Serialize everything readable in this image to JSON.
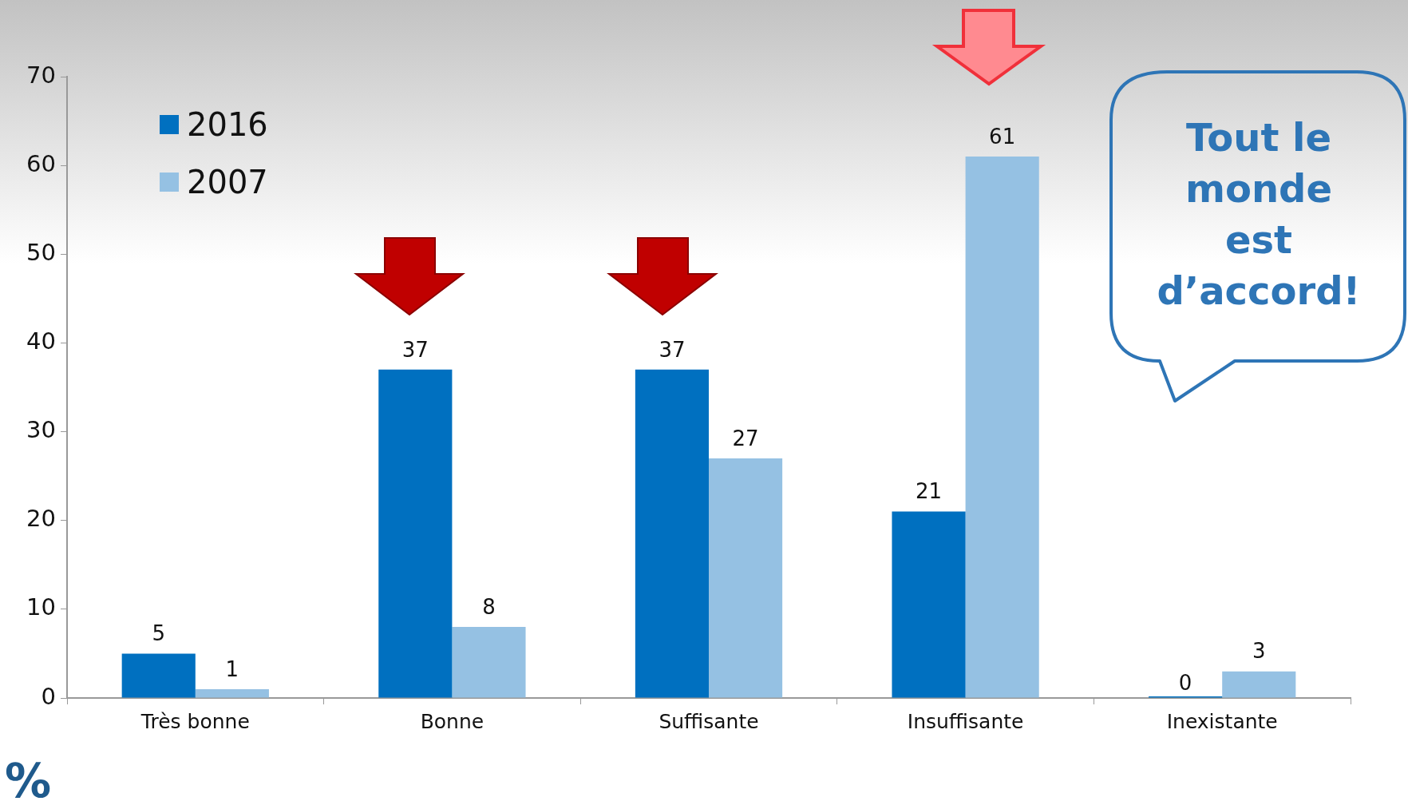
{
  "chart_data": {
    "type": "bar",
    "categories": [
      "Très bonne",
      "Bonne",
      "Suffisante",
      "Insuffisante",
      "Inexistante"
    ],
    "series": [
      {
        "name": "2016",
        "color": "#0070c0",
        "values": [
          5,
          37,
          37,
          21,
          0
        ]
      },
      {
        "name": "2007",
        "color": "#95c1e3",
        "values": [
          1,
          8,
          27,
          61,
          3
        ]
      }
    ],
    "ylim": [
      0,
      70
    ],
    "yticks": [
      0,
      10,
      20,
      30,
      40,
      50,
      60,
      70
    ],
    "grid": false,
    "legend": "top left",
    "data_labels": true,
    "annotations": [
      "Tout le monde est d’accord!",
      "%"
    ]
  }
}
